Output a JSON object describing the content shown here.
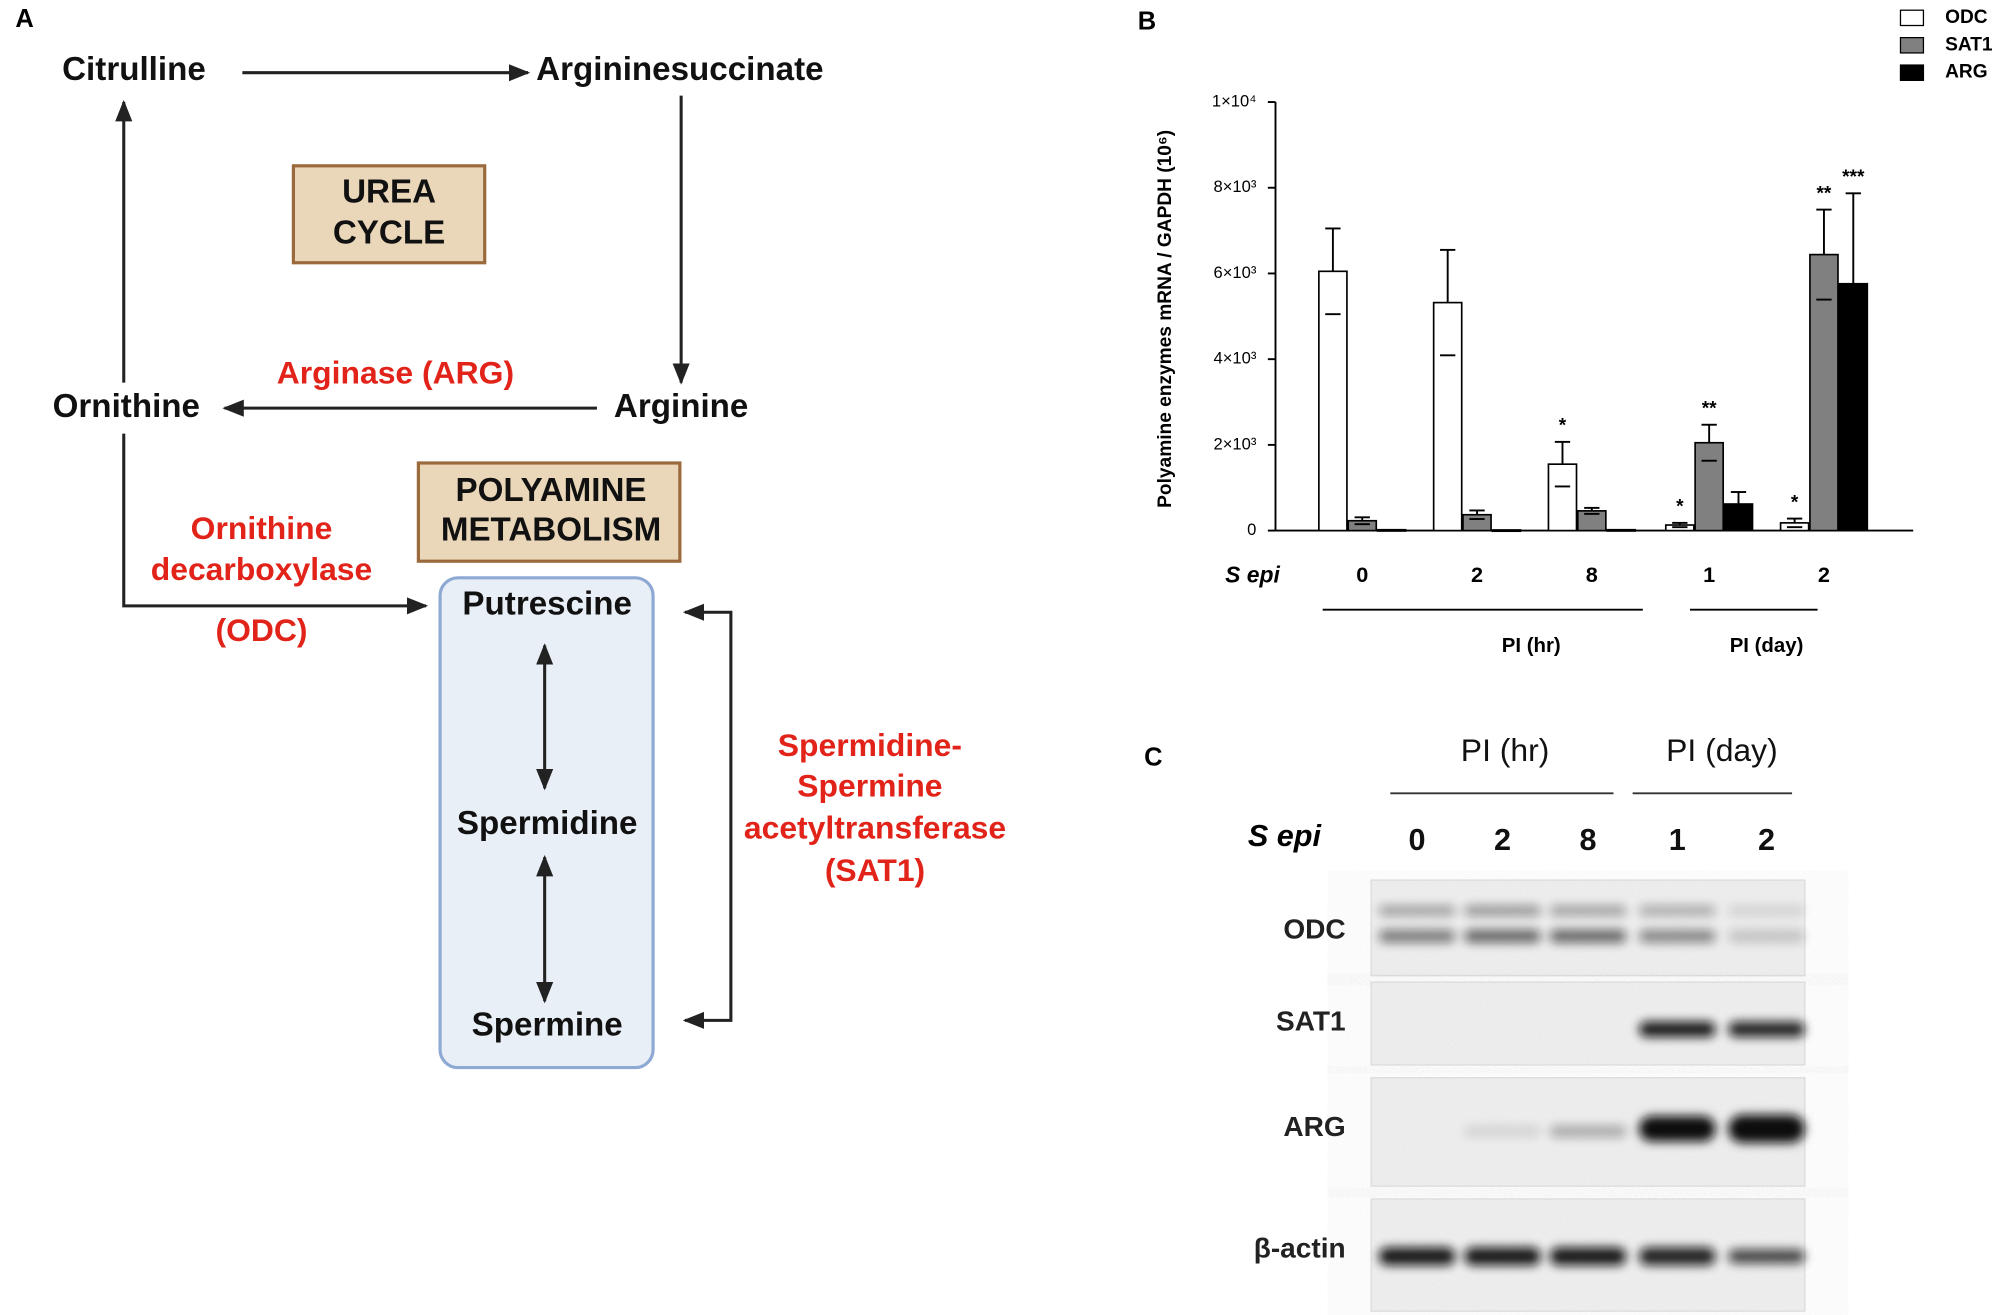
{
  "panel_a": {
    "label": "A",
    "nodes": {
      "citrulline": "Citrulline",
      "argininosuccinate": "Argininesuccinate",
      "ornithine": "Ornithine",
      "arginine": "Arginine",
      "putrescine": "Putrescine",
      "spermidine": "Spermidine",
      "spermine": "Spermine"
    },
    "boxes": {
      "urea_cycle": [
        "UREA",
        "CYCLE"
      ],
      "polyamine": [
        "POLYAMINE",
        "METABOLISM"
      ]
    },
    "enzymes": {
      "arg": [
        "Arginase (ARG)"
      ],
      "odc": [
        "Ornithine",
        "decarboxylase",
        "(ODC)"
      ],
      "sat1": [
        "Spermidine-",
        "Spermine",
        "acetyltransferase",
        "(SAT1)"
      ]
    }
  },
  "chart_data": {
    "type": "bar",
    "panel_label": "B",
    "y_axis_label": "Polyamine enzymes mRNA / GAPDH (10⁶)",
    "category_axis_label": "S epi",
    "categories": [
      "0",
      "2",
      "8",
      "1",
      "2"
    ],
    "groups": [
      "PI (hr)",
      "PI (day)"
    ],
    "ylim": [
      0,
      10000
    ],
    "yticks": [
      0,
      {
        "value": 2000,
        "label": "2×10³"
      },
      {
        "value": 4000,
        "label": "4×10³"
      },
      {
        "value": 6000,
        "label": "6×10³"
      },
      {
        "value": 8000,
        "label": "8×10³"
      },
      {
        "value": 10000,
        "label": "1×10⁴"
      }
    ],
    "legend": "top-right",
    "series": [
      {
        "name": "ODC",
        "color": "#ffffff",
        "values": [
          6050,
          5320,
          1550,
          130,
          180
        ],
        "errors": [
          1000,
          1230,
          520,
          50,
          100
        ],
        "annotations": [
          null,
          null,
          "*",
          "*",
          "*"
        ]
      },
      {
        "name": "SAT1",
        "color": "#808080",
        "values": [
          230,
          370,
          460,
          2050,
          6440
        ],
        "errors": [
          80,
          100,
          70,
          420,
          1050
        ],
        "annotations": [
          null,
          null,
          null,
          "**",
          "**"
        ]
      },
      {
        "name": "ARG",
        "color": "#000000",
        "values": [
          20,
          15,
          20,
          620,
          5760
        ],
        "errors": [
          0,
          0,
          0,
          280,
          2110
        ],
        "annotations": [
          null,
          null,
          null,
          null,
          "***"
        ]
      }
    ]
  },
  "panel_c": {
    "label": "C",
    "groups": [
      "PI (hr)",
      "PI (day)"
    ],
    "lane_axis_label": "S epi",
    "lanes": [
      "0",
      "2",
      "8",
      "1",
      "2"
    ],
    "rows": [
      "ODC",
      "SAT1",
      "ARG",
      "β-actin"
    ]
  }
}
